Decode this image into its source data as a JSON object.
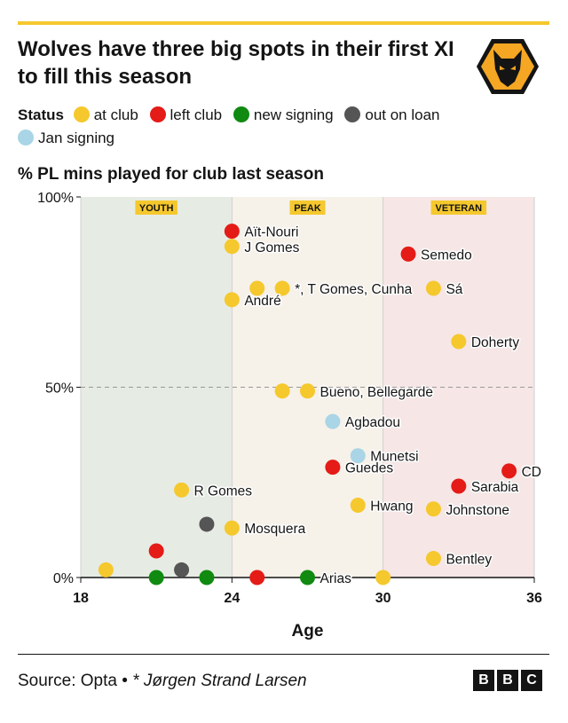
{
  "title": "Wolves have three big spots in their first XI to fill this season",
  "legend": {
    "label": "Status",
    "items": [
      {
        "label": "at club",
        "color": "#f5c82d"
      },
      {
        "label": "left club",
        "color": "#e41b17"
      },
      {
        "label": "new signing",
        "color": "#108a10"
      },
      {
        "label": "out on loan",
        "color": "#555555"
      },
      {
        "label": "Jan signing",
        "color": "#a9d5e6"
      }
    ]
  },
  "subtitle": "% PL mins played for club last season",
  "footer": {
    "source": "Source: Opta",
    "separator": " • ",
    "note": "* Jørgen Strand Larsen",
    "bbc": [
      "B",
      "B",
      "C"
    ]
  },
  "badge_icon": "wolf-head-icon",
  "chart_data": {
    "type": "scatter",
    "xlabel": "Age",
    "xlim": [
      18,
      36
    ],
    "ylim": [
      0,
      100
    ],
    "xticks": [
      18,
      24,
      30,
      36
    ],
    "yticks": [
      {
        "value": 0,
        "label": "0%"
      },
      {
        "value": 50,
        "label": "50%"
      },
      {
        "value": 100,
        "label": "100%"
      }
    ],
    "reference_line_y": 50,
    "zones": [
      {
        "label": "YOUTH",
        "from": 18,
        "to": 24,
        "color": "#e6ece4"
      },
      {
        "label": "PEAK",
        "from": 24,
        "to": 30,
        "color": "#f6f1e9"
      },
      {
        "label": "VETERAN",
        "from": 30,
        "to": 36,
        "color": "#f6e6e6"
      }
    ],
    "colors": {
      "at club": "#f5c82d",
      "left club": "#e41b17",
      "new signing": "#108a10",
      "out on loan": "#555555",
      "Jan signing": "#a9d5e6"
    },
    "points": [
      {
        "x": 24,
        "y": 91,
        "status": "left club"
      },
      {
        "x": 24,
        "y": 87,
        "status": "at club"
      },
      {
        "x": 25,
        "y": 76,
        "status": "at club"
      },
      {
        "x": 26,
        "y": 76,
        "status": "at club"
      },
      {
        "x": 24,
        "y": 73,
        "status": "at club"
      },
      {
        "x": 31,
        "y": 85,
        "status": "left club"
      },
      {
        "x": 32,
        "y": 76,
        "status": "at club"
      },
      {
        "x": 33,
        "y": 62,
        "status": "at club"
      },
      {
        "x": 26,
        "y": 49,
        "status": "at club"
      },
      {
        "x": 27,
        "y": 49,
        "status": "at club"
      },
      {
        "x": 28,
        "y": 41,
        "status": "Jan signing"
      },
      {
        "x": 29,
        "y": 32,
        "status": "Jan signing"
      },
      {
        "x": 28,
        "y": 29,
        "status": "left club"
      },
      {
        "x": 35,
        "y": 28,
        "status": "left club"
      },
      {
        "x": 33,
        "y": 24,
        "status": "left club"
      },
      {
        "x": 22,
        "y": 23,
        "status": "at club"
      },
      {
        "x": 29,
        "y": 19,
        "status": "at club"
      },
      {
        "x": 32,
        "y": 18,
        "status": "at club"
      },
      {
        "x": 23,
        "y": 14,
        "status": "out on loan"
      },
      {
        "x": 24,
        "y": 13,
        "status": "at club"
      },
      {
        "x": 32,
        "y": 5,
        "status": "at club"
      },
      {
        "x": 21,
        "y": 7,
        "status": "left club"
      },
      {
        "x": 19,
        "y": 2,
        "status": "at club"
      },
      {
        "x": 22,
        "y": 2,
        "status": "out on loan"
      },
      {
        "x": 21,
        "y": 0,
        "status": "new signing"
      },
      {
        "x": 23,
        "y": 0,
        "status": "new signing"
      },
      {
        "x": 25,
        "y": 0,
        "status": "left club"
      },
      {
        "x": 27,
        "y": 0,
        "status": "new signing"
      },
      {
        "x": 30,
        "y": 0,
        "status": "at club"
      }
    ],
    "labels": [
      {
        "text": "Aït-Nouri",
        "x": 24,
        "y": 91
      },
      {
        "text": "J Gomes",
        "x": 24,
        "y": 87
      },
      {
        "text": "*, T Gomes, Cunha",
        "x": 26,
        "y": 76
      },
      {
        "text": "André",
        "x": 24,
        "y": 73
      },
      {
        "text": "Semedo",
        "x": 31,
        "y": 85
      },
      {
        "text": "Sá",
        "x": 32,
        "y": 76
      },
      {
        "text": "Doherty",
        "x": 33,
        "y": 62
      },
      {
        "text": "Bueno, Bellegarde",
        "x": 27,
        "y": 49
      },
      {
        "text": "Agbadou",
        "x": 28,
        "y": 41
      },
      {
        "text": "Munetsi",
        "x": 29,
        "y": 32
      },
      {
        "text": "Guedes",
        "x": 28,
        "y": 29
      },
      {
        "text": "CD",
        "x": 35,
        "y": 28
      },
      {
        "text": "Sarabia",
        "x": 33,
        "y": 24
      },
      {
        "text": "R Gomes",
        "x": 22,
        "y": 23
      },
      {
        "text": "Hwang",
        "x": 29,
        "y": 19
      },
      {
        "text": "Johnstone",
        "x": 32,
        "y": 18
      },
      {
        "text": "Mosquera",
        "x": 24,
        "y": 13
      },
      {
        "text": "Bentley",
        "x": 32,
        "y": 5
      },
      {
        "text": "Arias",
        "x": 27,
        "y": 0
      }
    ]
  }
}
